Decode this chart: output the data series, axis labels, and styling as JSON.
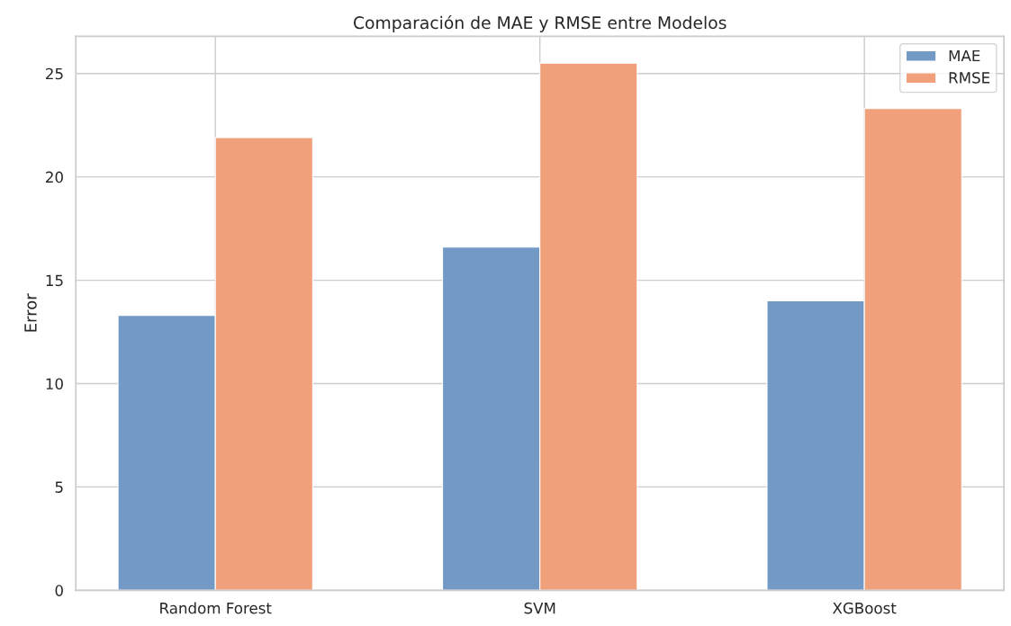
{
  "chart_data": {
    "type": "bar",
    "title": "Comparación de MAE y RMSE entre Modelos",
    "ylabel": "Error",
    "categories": [
      "Random Forest",
      "SVM",
      "XGBoost"
    ],
    "series": [
      {
        "name": "MAE",
        "color": "#7399c6",
        "values": [
          13.3,
          16.6,
          14.0
        ]
      },
      {
        "name": "RMSE",
        "color": "#f0a07b",
        "values": [
          21.9,
          25.5,
          23.3
        ]
      }
    ],
    "ylim": [
      0,
      26.8
    ],
    "yticks": [
      0,
      5,
      10,
      15,
      20,
      25
    ],
    "grid": true,
    "legend": "top right"
  }
}
